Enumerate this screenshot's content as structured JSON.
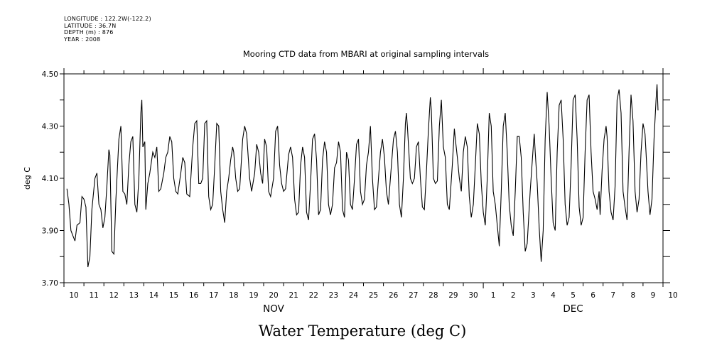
{
  "header": {
    "meta_lines": [
      "LONGITUDE : 122.2W(-122.2)",
      "LATITUDE : 36.7N",
      "DEPTH (m) : 876",
      "YEAR : 2008"
    ],
    "title": "Mooring  CTD data from MBARI at original sampling intervals",
    "bottom_title": "Water Temperature (deg C)"
  },
  "chart_data": {
    "type": "line",
    "title": "Mooring  CTD data from MBARI at original sampling intervals",
    "xlabel": "",
    "ylabel": "deg C",
    "ylim": [
      3.7,
      4.5
    ],
    "xlim_days": [
      0,
      30
    ],
    "yticks": [
      "3.70",
      "3.90",
      "4.10",
      "4.30",
      "4.50"
    ],
    "yticks_values": [
      3.7,
      3.9,
      4.1,
      4.3,
      4.5
    ],
    "y_minor_ticks": [
      3.8,
      4.0,
      4.2,
      4.4
    ],
    "xtick_labels": [
      "10",
      "11",
      "12",
      "13",
      "14",
      "15",
      "16",
      "17",
      "18",
      "19",
      "20",
      "21",
      "22",
      "23",
      "24",
      "25",
      "26",
      "27",
      "28",
      "29",
      "30",
      "1",
      "2",
      "3",
      "4",
      "5",
      "6",
      "7",
      "8",
      "9",
      "10"
    ],
    "month_labels": [
      {
        "label": "NOV",
        "day": 10.5
      },
      {
        "label": "DEC",
        "day": 25.5
      }
    ],
    "x_units": "days since Nov 10 2008",
    "grid": false,
    "series": [
      {
        "name": "Water Temperature",
        "color": "#000000",
        "points": [
          [
            0.15,
            4.06
          ],
          [
            0.25,
            4.0
          ],
          [
            0.35,
            3.9
          ],
          [
            0.45,
            3.88
          ],
          [
            0.55,
            3.86
          ],
          [
            0.65,
            3.92
          ],
          [
            0.8,
            3.93
          ],
          [
            0.9,
            4.03
          ],
          [
            1.0,
            4.02
          ],
          [
            1.1,
            3.99
          ],
          [
            1.2,
            3.76
          ],
          [
            1.3,
            3.8
          ],
          [
            1.4,
            3.98
          ],
          [
            1.55,
            4.1
          ],
          [
            1.65,
            4.12
          ],
          [
            1.75,
            4.0
          ],
          [
            1.85,
            3.98
          ],
          [
            1.95,
            3.91
          ],
          [
            2.05,
            3.95
          ],
          [
            2.15,
            4.07
          ],
          [
            2.25,
            4.21
          ],
          [
            2.3,
            4.19
          ],
          [
            2.4,
            3.82
          ],
          [
            2.5,
            3.81
          ],
          [
            2.6,
            4.02
          ],
          [
            2.75,
            4.25
          ],
          [
            2.85,
            4.3
          ],
          [
            2.95,
            4.05
          ],
          [
            3.05,
            4.04
          ],
          [
            3.15,
            4.0
          ],
          [
            3.25,
            4.15
          ],
          [
            3.35,
            4.24
          ],
          [
            3.45,
            4.26
          ],
          [
            3.55,
            4.0
          ],
          [
            3.65,
            3.97
          ],
          [
            3.75,
            4.1
          ],
          [
            3.85,
            4.35
          ],
          [
            3.9,
            4.4
          ],
          [
            3.95,
            4.22
          ],
          [
            4.05,
            4.24
          ],
          [
            4.1,
            3.98
          ],
          [
            4.2,
            4.08
          ],
          [
            4.3,
            4.12
          ],
          [
            4.45,
            4.2
          ],
          [
            4.55,
            4.18
          ],
          [
            4.65,
            4.22
          ],
          [
            4.75,
            4.05
          ],
          [
            4.85,
            4.06
          ],
          [
            5.0,
            4.12
          ],
          [
            5.1,
            4.18
          ],
          [
            5.2,
            4.2
          ],
          [
            5.3,
            4.26
          ],
          [
            5.4,
            4.24
          ],
          [
            5.5,
            4.1
          ],
          [
            5.6,
            4.05
          ],
          [
            5.7,
            4.04
          ],
          [
            5.85,
            4.12
          ],
          [
            5.95,
            4.18
          ],
          [
            6.05,
            4.16
          ],
          [
            6.15,
            4.04
          ],
          [
            6.3,
            4.03
          ],
          [
            6.45,
            4.22
          ],
          [
            6.55,
            4.31
          ],
          [
            6.65,
            4.32
          ],
          [
            6.75,
            4.08
          ],
          [
            6.85,
            4.08
          ],
          [
            6.95,
            4.1
          ],
          [
            7.05,
            4.31
          ],
          [
            7.15,
            4.32
          ],
          [
            7.25,
            4.03
          ],
          [
            7.35,
            3.98
          ],
          [
            7.45,
            4.0
          ],
          [
            7.55,
            4.15
          ],
          [
            7.65,
            4.31
          ],
          [
            7.75,
            4.3
          ],
          [
            7.85,
            4.05
          ],
          [
            7.95,
            3.98
          ],
          [
            8.05,
            3.93
          ],
          [
            8.15,
            4.05
          ],
          [
            8.25,
            4.1
          ],
          [
            8.35,
            4.17
          ],
          [
            8.45,
            4.22
          ],
          [
            8.5,
            4.2
          ],
          [
            8.6,
            4.1
          ],
          [
            8.7,
            4.05
          ],
          [
            8.8,
            4.06
          ],
          [
            8.95,
            4.25
          ],
          [
            9.05,
            4.3
          ],
          [
            9.15,
            4.27
          ],
          [
            9.3,
            4.1
          ],
          [
            9.4,
            4.05
          ],
          [
            9.55,
            4.12
          ],
          [
            9.65,
            4.23
          ],
          [
            9.75,
            4.2
          ],
          [
            9.85,
            4.12
          ],
          [
            9.95,
            4.08
          ],
          [
            10.05,
            4.25
          ],
          [
            10.15,
            4.22
          ],
          [
            10.25,
            4.05
          ],
          [
            10.35,
            4.03
          ],
          [
            10.5,
            4.1
          ],
          [
            10.6,
            4.28
          ],
          [
            10.7,
            4.3
          ],
          [
            10.8,
            4.15
          ],
          [
            10.9,
            4.08
          ],
          [
            11.0,
            4.05
          ],
          [
            11.1,
            4.06
          ],
          [
            11.25,
            4.19
          ],
          [
            11.35,
            4.22
          ],
          [
            11.45,
            4.18
          ],
          [
            11.55,
            4.02
          ],
          [
            11.65,
            3.96
          ],
          [
            11.75,
            3.97
          ],
          [
            11.85,
            4.15
          ],
          [
            11.95,
            4.22
          ],
          [
            12.05,
            4.18
          ],
          [
            12.15,
            3.97
          ],
          [
            12.25,
            3.94
          ],
          [
            12.35,
            4.08
          ],
          [
            12.45,
            4.25
          ],
          [
            12.55,
            4.27
          ],
          [
            12.65,
            4.17
          ],
          [
            12.75,
            3.96
          ],
          [
            12.85,
            3.98
          ],
          [
            12.95,
            4.17
          ],
          [
            13.05,
            4.24
          ],
          [
            13.15,
            4.2
          ],
          [
            13.25,
            4.0
          ],
          [
            13.35,
            3.96
          ],
          [
            13.45,
            4.0
          ],
          [
            13.55,
            4.14
          ],
          [
            13.65,
            4.16
          ],
          [
            13.75,
            4.24
          ],
          [
            13.85,
            4.2
          ],
          [
            13.95,
            3.98
          ],
          [
            14.05,
            3.95
          ],
          [
            14.15,
            4.2
          ],
          [
            14.25,
            4.17
          ],
          [
            14.35,
            4.0
          ],
          [
            14.45,
            3.98
          ],
          [
            14.55,
            4.1
          ],
          [
            14.65,
            4.23
          ],
          [
            14.75,
            4.25
          ],
          [
            14.85,
            4.05
          ],
          [
            14.95,
            4.0
          ],
          [
            15.05,
            4.02
          ],
          [
            15.15,
            4.15
          ],
          [
            15.25,
            4.2
          ],
          [
            15.35,
            4.3
          ],
          [
            15.45,
            4.1
          ],
          [
            15.55,
            3.98
          ],
          [
            15.65,
            3.99
          ],
          [
            15.75,
            4.1
          ],
          [
            15.85,
            4.2
          ],
          [
            15.95,
            4.25
          ],
          [
            16.05,
            4.18
          ],
          [
            16.15,
            4.05
          ],
          [
            16.25,
            4.0
          ],
          [
            16.35,
            4.1
          ],
          [
            16.5,
            4.25
          ],
          [
            16.6,
            4.28
          ],
          [
            16.7,
            4.2
          ],
          [
            16.8,
            4.0
          ],
          [
            16.9,
            3.95
          ],
          [
            17.0,
            4.1
          ],
          [
            17.1,
            4.31
          ],
          [
            17.15,
            4.35
          ],
          [
            17.2,
            4.3
          ],
          [
            17.35,
            4.1
          ],
          [
            17.45,
            4.08
          ],
          [
            17.55,
            4.1
          ],
          [
            17.65,
            4.22
          ],
          [
            17.75,
            4.24
          ],
          [
            17.85,
            4.1
          ],
          [
            17.95,
            3.99
          ],
          [
            18.05,
            3.98
          ],
          [
            18.15,
            4.12
          ],
          [
            18.25,
            4.28
          ],
          [
            18.35,
            4.41
          ],
          [
            18.4,
            4.36
          ],
          [
            18.5,
            4.1
          ],
          [
            18.6,
            4.08
          ],
          [
            18.7,
            4.09
          ],
          [
            18.8,
            4.3
          ],
          [
            18.9,
            4.4
          ],
          [
            19.0,
            4.22
          ],
          [
            19.1,
            4.18
          ],
          [
            19.2,
            4.0
          ],
          [
            19.3,
            3.98
          ],
          [
            19.45,
            4.15
          ],
          [
            19.55,
            4.29
          ],
          [
            19.6,
            4.25
          ],
          [
            19.7,
            4.18
          ],
          [
            19.8,
            4.1
          ],
          [
            19.9,
            4.05
          ],
          [
            20.0,
            4.2
          ],
          [
            20.1,
            4.26
          ],
          [
            20.2,
            4.22
          ],
          [
            20.3,
            4.03
          ],
          [
            20.4,
            3.95
          ],
          [
            20.5,
            4.0
          ],
          [
            20.6,
            4.15
          ],
          [
            20.7,
            4.31
          ],
          [
            20.8,
            4.27
          ],
          [
            20.9,
            4.08
          ],
          [
            21.0,
            3.97
          ],
          [
            21.1,
            3.92
          ],
          [
            21.2,
            4.1
          ],
          [
            21.3,
            4.35
          ],
          [
            21.4,
            4.3
          ],
          [
            21.5,
            4.05
          ],
          [
            21.6,
            4.0
          ],
          [
            21.7,
            3.92
          ],
          [
            21.8,
            3.84
          ],
          [
            21.9,
            4.05
          ],
          [
            22.0,
            4.3
          ],
          [
            22.1,
            4.35
          ],
          [
            22.2,
            4.2
          ],
          [
            22.3,
            4.0
          ],
          [
            22.4,
            3.92
          ],
          [
            22.5,
            3.88
          ],
          [
            22.6,
            4.05
          ],
          [
            22.7,
            4.26
          ],
          [
            22.8,
            4.26
          ],
          [
            22.9,
            4.18
          ],
          [
            23.0,
            3.97
          ],
          [
            23.1,
            3.82
          ],
          [
            23.2,
            3.85
          ],
          [
            23.35,
            4.05
          ],
          [
            23.5,
            4.22
          ],
          [
            23.55,
            4.27
          ],
          [
            23.6,
            4.2
          ],
          [
            23.7,
            4.08
          ],
          [
            23.8,
            3.91
          ],
          [
            23.9,
            3.78
          ],
          [
            24.0,
            3.9
          ],
          [
            24.1,
            4.25
          ],
          [
            24.2,
            4.43
          ],
          [
            24.3,
            4.3
          ],
          [
            24.4,
            4.1
          ],
          [
            24.5,
            3.93
          ],
          [
            24.6,
            3.9
          ],
          [
            24.7,
            4.2
          ],
          [
            24.8,
            4.38
          ],
          [
            24.9,
            4.4
          ],
          [
            25.0,
            4.25
          ],
          [
            25.1,
            4.0
          ],
          [
            25.2,
            3.92
          ],
          [
            25.3,
            3.95
          ],
          [
            25.4,
            4.15
          ],
          [
            25.5,
            4.4
          ],
          [
            25.6,
            4.42
          ],
          [
            25.7,
            4.25
          ],
          [
            25.8,
            3.99
          ],
          [
            25.9,
            3.92
          ],
          [
            26.0,
            3.95
          ],
          [
            26.1,
            4.2
          ],
          [
            26.2,
            4.4
          ],
          [
            26.3,
            4.42
          ],
          [
            26.4,
            4.2
          ],
          [
            26.5,
            4.05
          ],
          [
            26.6,
            4.02
          ],
          [
            26.7,
            3.98
          ],
          [
            26.8,
            4.05
          ],
          [
            26.85,
            3.96
          ],
          [
            26.95,
            4.13
          ],
          [
            27.05,
            4.25
          ],
          [
            27.15,
            4.3
          ],
          [
            27.2,
            4.26
          ],
          [
            27.3,
            4.05
          ],
          [
            27.4,
            3.97
          ],
          [
            27.5,
            3.94
          ],
          [
            27.6,
            4.07
          ],
          [
            27.7,
            4.4
          ],
          [
            27.8,
            4.44
          ],
          [
            27.9,
            4.35
          ],
          [
            28.0,
            4.05
          ],
          [
            28.1,
            3.99
          ],
          [
            28.2,
            3.94
          ],
          [
            28.3,
            4.2
          ],
          [
            28.4,
            4.42
          ],
          [
            28.5,
            4.32
          ],
          [
            28.6,
            4.05
          ],
          [
            28.7,
            3.97
          ],
          [
            28.8,
            4.02
          ],
          [
            28.9,
            4.2
          ],
          [
            29.0,
            4.31
          ],
          [
            29.1,
            4.27
          ],
          [
            29.15,
            4.2
          ],
          [
            29.25,
            4.05
          ],
          [
            29.35,
            3.96
          ],
          [
            29.45,
            4.02
          ],
          [
            29.55,
            4.25
          ],
          [
            29.65,
            4.4
          ],
          [
            29.7,
            4.46
          ],
          [
            29.75,
            4.36
          ]
        ]
      }
    ]
  }
}
